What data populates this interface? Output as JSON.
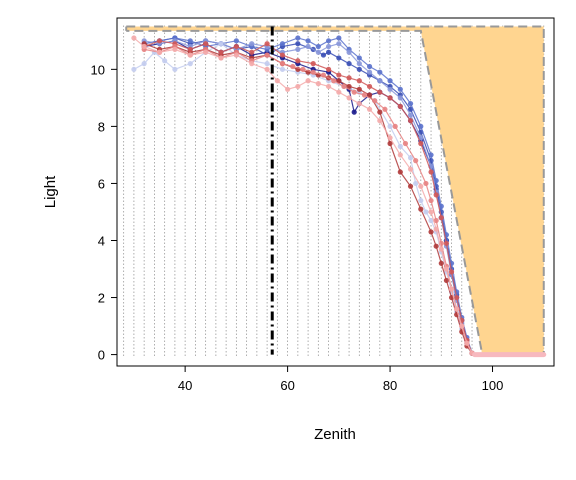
{
  "chart_data": {
    "type": "line",
    "title": "",
    "xlabel": "Zenith",
    "ylabel": "Light",
    "xlim": [
      26.7,
      112
    ],
    "ylim": [
      -0.4,
      11.8
    ],
    "x_ticks": [
      40,
      60,
      80,
      100
    ],
    "y_ticks": [
      0,
      2,
      4,
      6,
      8,
      10
    ],
    "grid": "vertical dotted lines every 2 degrees",
    "reference_line": {
      "x": 57,
      "style": "dash-dot",
      "color": "#000000"
    },
    "envelope": {
      "fill": "#FFD590",
      "stroke": "#999999",
      "outer": [
        [
          28.5,
          11.5
        ],
        [
          110,
          11.5
        ],
        [
          110,
          0
        ],
        [
          98,
          0
        ],
        [
          86,
          11.35
        ],
        [
          28.5,
          11.35
        ]
      ]
    },
    "baseline_bar": {
      "x": [
        96.5,
        110
      ],
      "y": 0,
      "color": "#F7B9BF"
    },
    "series": [
      {
        "color": "#1A1A8C",
        "points": [
          [
            32,
            10.8
          ],
          [
            35,
            10.9
          ],
          [
            38,
            11.0
          ],
          [
            41,
            10.7
          ],
          [
            44,
            10.9
          ],
          [
            47,
            10.6
          ],
          [
            50,
            10.8
          ],
          [
            53,
            10.5
          ],
          [
            56,
            10.6
          ],
          [
            59,
            10.4
          ],
          [
            62,
            10.2
          ],
          [
            65,
            10.0
          ],
          [
            68,
            9.9
          ],
          [
            70,
            9.6
          ],
          [
            72,
            9.3
          ],
          [
            73,
            8.5
          ],
          [
            74,
            8.8
          ],
          [
            76,
            9.1
          ],
          [
            78,
            9.2
          ],
          [
            80,
            9.0
          ],
          [
            82,
            8.7
          ],
          [
            84,
            8.2
          ],
          [
            86,
            7.5
          ],
          [
            88,
            6.6
          ],
          [
            89,
            5.8
          ],
          [
            90,
            4.8
          ],
          [
            91,
            4.0
          ],
          [
            92,
            2.8
          ],
          [
            93,
            2.0
          ],
          [
            94,
            1.2
          ],
          [
            95,
            0.5
          ],
          [
            96,
            0.05
          ]
        ]
      },
      {
        "color": "#3A4FB5",
        "points": [
          [
            32,
            10.9
          ],
          [
            35,
            11.0
          ],
          [
            38,
            11.1
          ],
          [
            41,
            10.9
          ],
          [
            44,
            11.0
          ],
          [
            47,
            10.9
          ],
          [
            50,
            10.7
          ],
          [
            53,
            10.8
          ],
          [
            56,
            10.5
          ],
          [
            59,
            10.8
          ],
          [
            62,
            10.9
          ],
          [
            65,
            10.7
          ],
          [
            67,
            10.5
          ],
          [
            68,
            10.6
          ],
          [
            70,
            10.4
          ],
          [
            72,
            10.2
          ],
          [
            74,
            10.0
          ],
          [
            76,
            9.8
          ],
          [
            78,
            9.6
          ],
          [
            80,
            9.4
          ],
          [
            82,
            9.1
          ],
          [
            84,
            8.6
          ],
          [
            86,
            7.8
          ],
          [
            88,
            6.8
          ],
          [
            89,
            5.9
          ],
          [
            90,
            5.0
          ],
          [
            91,
            4.0
          ],
          [
            92,
            3.0
          ],
          [
            93,
            2.1
          ],
          [
            94,
            1.2
          ],
          [
            95,
            0.5
          ],
          [
            96,
            0.05
          ]
        ]
      },
      {
        "color": "#5B72CC",
        "points": [
          [
            32,
            10.9
          ],
          [
            35,
            11.0
          ],
          [
            38,
            11.1
          ],
          [
            41,
            11.0
          ],
          [
            44,
            10.8
          ],
          [
            47,
            10.9
          ],
          [
            50,
            11.0
          ],
          [
            53,
            10.8
          ],
          [
            56,
            10.7
          ],
          [
            59,
            10.9
          ],
          [
            62,
            11.1
          ],
          [
            64,
            11.0
          ],
          [
            66,
            10.8
          ],
          [
            68,
            11.0
          ],
          [
            70,
            11.1
          ],
          [
            72,
            10.7
          ],
          [
            74,
            10.4
          ],
          [
            76,
            10.1
          ],
          [
            78,
            9.9
          ],
          [
            80,
            9.6
          ],
          [
            82,
            9.3
          ],
          [
            84,
            8.8
          ],
          [
            86,
            8.0
          ],
          [
            88,
            7.0
          ],
          [
            89,
            6.1
          ],
          [
            90,
            5.2
          ],
          [
            91,
            4.2
          ],
          [
            92,
            3.2
          ],
          [
            93,
            2.2
          ],
          [
            94,
            1.3
          ],
          [
            95,
            0.6
          ],
          [
            96,
            0.05
          ]
        ]
      },
      {
        "color": "#8796D9",
        "points": [
          [
            32,
            11.0
          ],
          [
            35,
            10.9
          ],
          [
            38,
            11.0
          ],
          [
            41,
            10.8
          ],
          [
            44,
            11.0
          ],
          [
            47,
            10.9
          ],
          [
            50,
            10.7
          ],
          [
            53,
            10.9
          ],
          [
            56,
            10.8
          ],
          [
            59,
            10.6
          ],
          [
            62,
            10.7
          ],
          [
            64,
            10.8
          ],
          [
            66,
            10.6
          ],
          [
            68,
            10.8
          ],
          [
            70,
            10.9
          ],
          [
            72,
            10.6
          ],
          [
            74,
            10.2
          ],
          [
            76,
            9.9
          ],
          [
            78,
            9.6
          ],
          [
            80,
            9.3
          ],
          [
            82,
            9.0
          ],
          [
            84,
            8.4
          ],
          [
            86,
            7.6
          ],
          [
            88,
            6.6
          ],
          [
            89,
            5.7
          ],
          [
            90,
            4.8
          ],
          [
            91,
            3.8
          ],
          [
            92,
            2.8
          ],
          [
            93,
            1.9
          ],
          [
            94,
            1.1
          ],
          [
            95,
            0.4
          ],
          [
            96,
            0.05
          ]
        ]
      },
      {
        "color": "#C3CCEE",
        "points": [
          [
            30,
            10.0
          ],
          [
            32,
            10.2
          ],
          [
            34,
            10.6
          ],
          [
            36,
            10.3
          ],
          [
            38,
            10.0
          ],
          [
            41,
            10.2
          ],
          [
            44,
            10.6
          ],
          [
            47,
            10.9
          ],
          [
            50,
            10.5
          ],
          [
            53,
            10.3
          ],
          [
            56,
            10.2
          ],
          [
            59,
            10.0
          ],
          [
            62,
            9.9
          ],
          [
            65,
            9.8
          ],
          [
            68,
            9.6
          ],
          [
            71,
            9.4
          ],
          [
            74,
            9.2
          ],
          [
            77,
            8.9
          ],
          [
            80,
            8.0
          ],
          [
            82,
            7.3
          ],
          [
            84,
            6.9
          ],
          [
            85,
            6.0
          ],
          [
            86,
            5.4
          ],
          [
            87,
            5.0
          ],
          [
            88,
            4.7
          ],
          [
            89,
            4.3
          ],
          [
            90,
            3.6
          ],
          [
            91,
            2.9
          ],
          [
            92,
            2.2
          ],
          [
            93,
            1.5
          ],
          [
            94,
            0.9
          ],
          [
            95,
            0.4
          ],
          [
            96,
            0.05
          ]
        ]
      },
      {
        "color": "#B03A3A",
        "points": [
          [
            32,
            10.9
          ],
          [
            35,
            10.7
          ],
          [
            38,
            10.8
          ],
          [
            41,
            10.6
          ],
          [
            44,
            10.7
          ],
          [
            47,
            10.5
          ],
          [
            50,
            10.6
          ],
          [
            53,
            10.4
          ],
          [
            56,
            10.5
          ],
          [
            59,
            10.2
          ],
          [
            62,
            10.0
          ],
          [
            64,
            9.9
          ],
          [
            66,
            9.8
          ],
          [
            68,
            9.7
          ],
          [
            70,
            9.6
          ],
          [
            72,
            9.4
          ],
          [
            74,
            9.3
          ],
          [
            76,
            9.1
          ],
          [
            78,
            8.5
          ],
          [
            80,
            7.4
          ],
          [
            82,
            6.4
          ],
          [
            84,
            5.9
          ],
          [
            86,
            5.1
          ],
          [
            88,
            4.3
          ],
          [
            89,
            3.8
          ],
          [
            90,
            3.2
          ],
          [
            91,
            2.6
          ],
          [
            92,
            2.0
          ],
          [
            93,
            1.4
          ],
          [
            94,
            0.8
          ],
          [
            95,
            0.3
          ],
          [
            96,
            0.05
          ]
        ]
      },
      {
        "color": "#D05858",
        "points": [
          [
            32,
            10.8
          ],
          [
            35,
            11.0
          ],
          [
            38,
            10.9
          ],
          [
            41,
            10.7
          ],
          [
            44,
            10.9
          ],
          [
            47,
            10.6
          ],
          [
            50,
            10.8
          ],
          [
            53,
            10.6
          ],
          [
            56,
            10.9
          ],
          [
            59,
            10.5
          ],
          [
            62,
            10.3
          ],
          [
            65,
            10.2
          ],
          [
            68,
            10.0
          ],
          [
            70,
            9.8
          ],
          [
            72,
            9.7
          ],
          [
            74,
            9.6
          ],
          [
            76,
            9.4
          ],
          [
            78,
            9.2
          ],
          [
            80,
            9.0
          ],
          [
            82,
            8.7
          ],
          [
            84,
            8.2
          ],
          [
            86,
            7.4
          ],
          [
            88,
            6.4
          ],
          [
            89,
            5.6
          ],
          [
            90,
            4.8
          ],
          [
            91,
            3.9
          ],
          [
            92,
            2.9
          ],
          [
            93,
            2.0
          ],
          [
            94,
            1.2
          ],
          [
            95,
            0.5
          ],
          [
            96,
            0.05
          ]
        ]
      },
      {
        "color": "#E78282",
        "points": [
          [
            32,
            10.7
          ],
          [
            35,
            10.6
          ],
          [
            38,
            10.8
          ],
          [
            41,
            10.5
          ],
          [
            44,
            10.7
          ],
          [
            47,
            10.4
          ],
          [
            50,
            10.6
          ],
          [
            53,
            10.3
          ],
          [
            56,
            10.5
          ],
          [
            59,
            10.2
          ],
          [
            61,
            10.1
          ],
          [
            63,
            10.0
          ],
          [
            65,
            9.9
          ],
          [
            67,
            9.8
          ],
          [
            69,
            9.6
          ],
          [
            71,
            9.4
          ],
          [
            73,
            9.2
          ],
          [
            75,
            9.1
          ],
          [
            77,
            8.9
          ],
          [
            79,
            8.6
          ],
          [
            81,
            8.0
          ],
          [
            83,
            7.4
          ],
          [
            85,
            6.8
          ],
          [
            87,
            6.0
          ],
          [
            88,
            5.4
          ],
          [
            89,
            4.7
          ],
          [
            90,
            3.9
          ],
          [
            91,
            3.1
          ],
          [
            92,
            2.3
          ],
          [
            93,
            1.6
          ],
          [
            94,
            1.0
          ],
          [
            95,
            0.4
          ],
          [
            96,
            0.05
          ]
        ]
      },
      {
        "color": "#F4AAAA",
        "points": [
          [
            30,
            11.1
          ],
          [
            32,
            10.8
          ],
          [
            35,
            10.6
          ],
          [
            38,
            10.7
          ],
          [
            41,
            10.5
          ],
          [
            44,
            10.6
          ],
          [
            47,
            10.4
          ],
          [
            50,
            10.5
          ],
          [
            53,
            10.2
          ],
          [
            56,
            10.0
          ],
          [
            58,
            9.6
          ],
          [
            60,
            9.3
          ],
          [
            62,
            9.4
          ],
          [
            64,
            9.6
          ],
          [
            66,
            9.5
          ],
          [
            68,
            9.4
          ],
          [
            70,
            9.2
          ],
          [
            72,
            9.0
          ],
          [
            74,
            8.8
          ],
          [
            76,
            8.6
          ],
          [
            78,
            8.2
          ],
          [
            80,
            7.6
          ],
          [
            82,
            7.0
          ],
          [
            84,
            6.5
          ],
          [
            86,
            5.9
          ],
          [
            88,
            5.0
          ],
          [
            89,
            4.4
          ],
          [
            90,
            3.7
          ],
          [
            91,
            3.0
          ],
          [
            92,
            2.3
          ],
          [
            93,
            1.6
          ],
          [
            94,
            1.0
          ],
          [
            95,
            0.4
          ],
          [
            96,
            0.05
          ]
        ]
      }
    ]
  }
}
